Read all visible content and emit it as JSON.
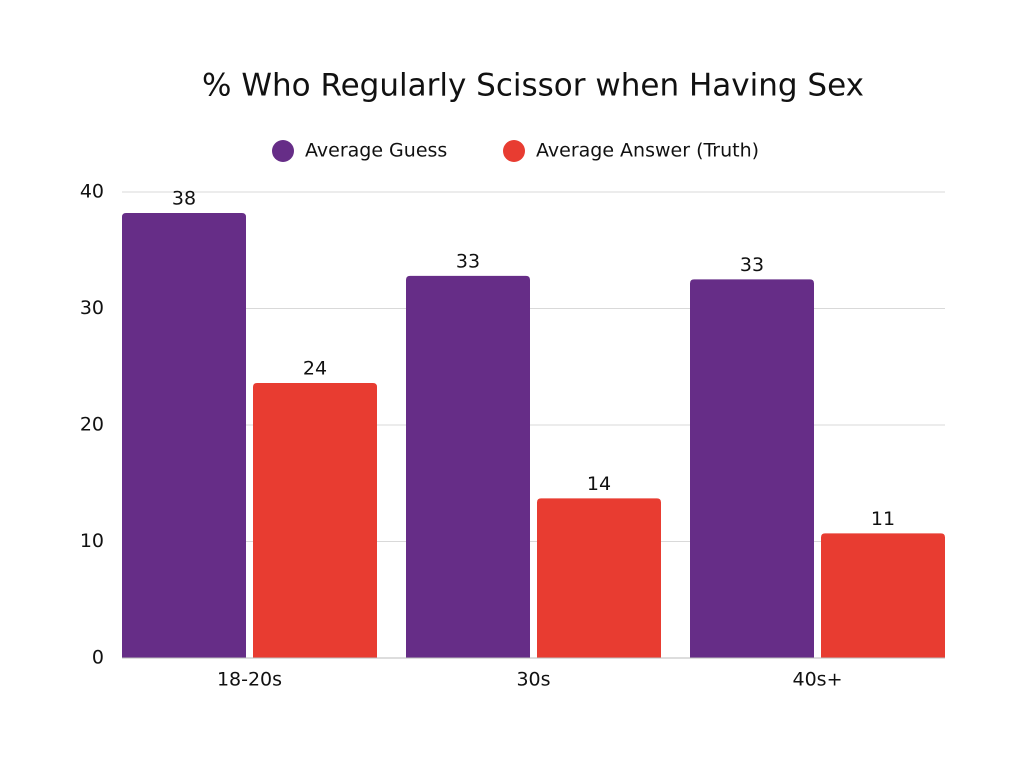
{
  "chart_data": {
    "type": "bar",
    "title": "% Who Regularly Scissor when Having Sex",
    "categories": [
      "18-20s",
      "30s",
      "40s+"
    ],
    "series": [
      {
        "name": "Average Guess",
        "color": "#662d87",
        "values": [
          38.2,
          32.8,
          32.5
        ],
        "value_labels": [
          "38",
          "33",
          "33"
        ]
      },
      {
        "name": "Average Answer (Truth)",
        "color": "#e83c31",
        "values": [
          23.6,
          13.7,
          10.7
        ],
        "value_labels": [
          "24",
          "14",
          "11"
        ]
      }
    ],
    "ylim": [
      0,
      40
    ],
    "yticks": [
      0,
      10,
      20,
      30,
      40
    ],
    "grid": true,
    "legend": "top"
  }
}
